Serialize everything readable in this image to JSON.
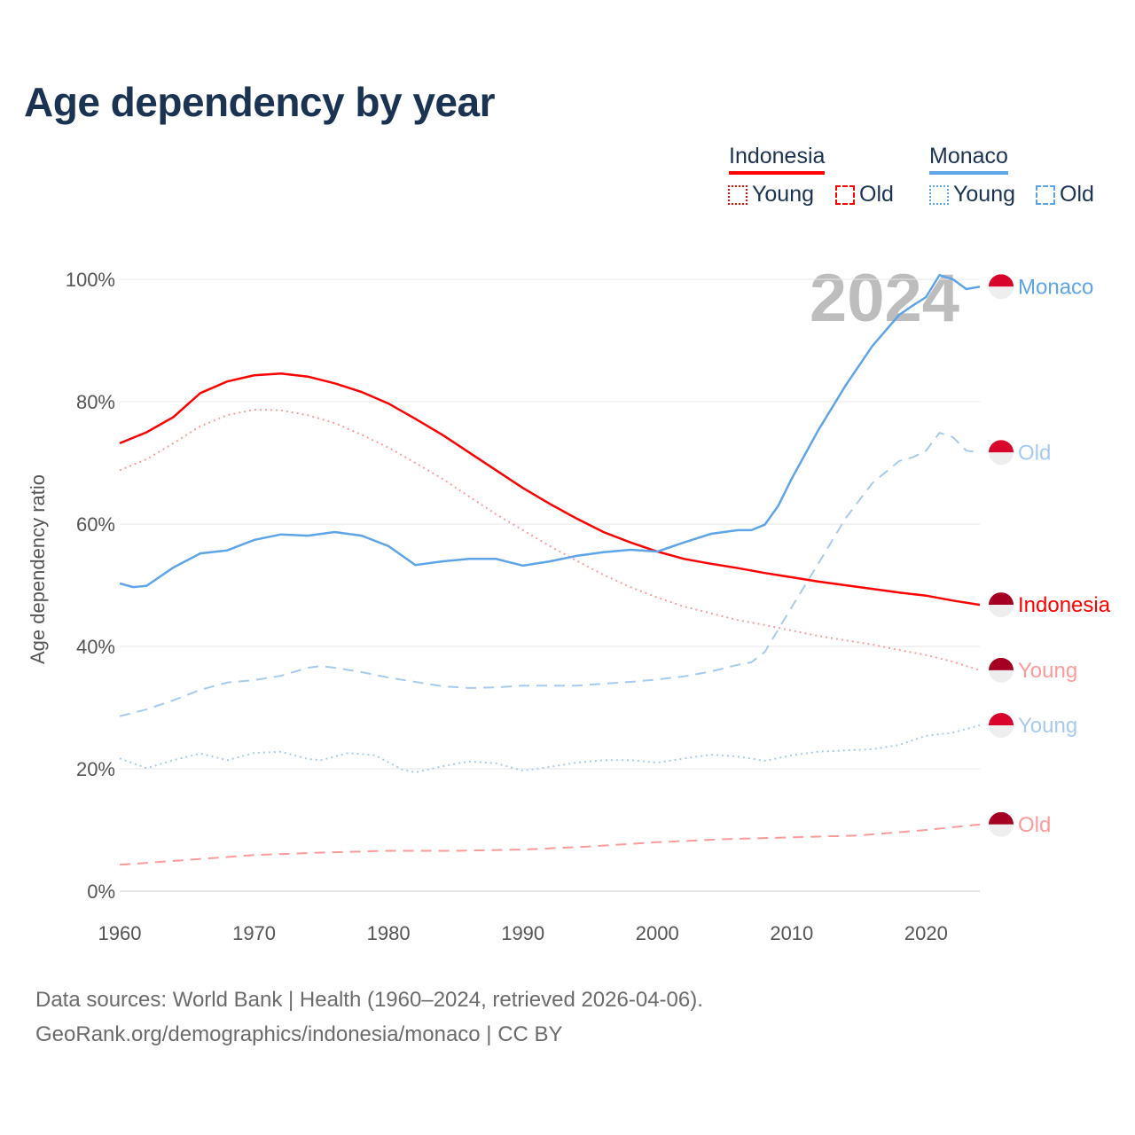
{
  "title": "Age dependency by year",
  "legend": {
    "countries": [
      {
        "name": "Indonesia",
        "color": "#ff0000"
      },
      {
        "name": "Monaco",
        "color": "#5ea4e8"
      }
    ],
    "young_label": "Young",
    "old_label": "Old"
  },
  "year_watermark": "2024",
  "source_line1": "Data sources: World Bank | Health (1960–2024, retrieved 2026-04-06).",
  "source_line2": "GeoRank.org/demographics/indonesia/monaco | CC BY",
  "chart_data": {
    "type": "line",
    "title": "Age dependency by year",
    "xlabel": "",
    "ylabel": "Age dependency ratio",
    "xlim": [
      1960,
      2024
    ],
    "ylim": [
      0,
      100
    ],
    "xticks": [
      "1960",
      "1970",
      "1980",
      "1990",
      "2000",
      "2010",
      "2020"
    ],
    "yticks": [
      "0%",
      "20%",
      "40%",
      "60%",
      "80%",
      "100%"
    ],
    "grid": true,
    "series": [
      {
        "name": "Indonesia",
        "end_label": "Indonesia",
        "country": "Indonesia",
        "kind": "total",
        "color": "#ff0000",
        "dash": "solid",
        "x": [
          1960,
          1962,
          1964,
          1966,
          1968,
          1970,
          1972,
          1974,
          1976,
          1978,
          1980,
          1982,
          1984,
          1986,
          1988,
          1990,
          1992,
          1994,
          1996,
          1998,
          2000,
          2002,
          2004,
          2006,
          2008,
          2010,
          2012,
          2014,
          2016,
          2018,
          2020,
          2022,
          2024
        ],
        "y": [
          73.2,
          75,
          77.5,
          81.4,
          83.3,
          84.3,
          84.6,
          84.1,
          83,
          81.6,
          79.7,
          77.2,
          74.6,
          71.7,
          68.8,
          65.9,
          63.3,
          60.9,
          58.7,
          57,
          55.5,
          54.3,
          53.5,
          52.8,
          52,
          51.3,
          50.6,
          50,
          49.4,
          48.8,
          48.3,
          47.5,
          46.8
        ]
      },
      {
        "name": "Indonesia Young",
        "end_label": "Young",
        "country": "Indonesia",
        "kind": "young",
        "color": "#ff9a9a",
        "dash": "dot",
        "x": [
          1960,
          1962,
          1964,
          1966,
          1968,
          1970,
          1972,
          1974,
          1976,
          1978,
          1980,
          1982,
          1984,
          1986,
          1988,
          1990,
          1992,
          1994,
          1996,
          1998,
          2000,
          2002,
          2004,
          2006,
          2008,
          2010,
          2012,
          2014,
          2016,
          2018,
          2020,
          2022,
          2024
        ],
        "y": [
          68.8,
          70.6,
          73.2,
          76,
          77.8,
          78.7,
          78.6,
          77.8,
          76.5,
          74.6,
          72.5,
          70,
          67.4,
          64.5,
          61.6,
          59,
          56.4,
          54,
          51.7,
          49.7,
          48,
          46.5,
          45.4,
          44.3,
          43.5,
          42.6,
          41.7,
          41,
          40.3,
          39.4,
          38.6,
          37.5,
          36.1
        ]
      },
      {
        "name": "Indonesia Old",
        "end_label": "Old",
        "country": "Indonesia",
        "kind": "old",
        "color": "#ff9a9a",
        "dash": "dash",
        "x": [
          1960,
          1965,
          1970,
          1975,
          1980,
          1985,
          1990,
          1995,
          2000,
          2005,
          2010,
          2015,
          2020,
          2024
        ],
        "y": [
          4.3,
          5.1,
          5.9,
          6.3,
          6.6,
          6.6,
          6.8,
          7.3,
          8,
          8.5,
          8.8,
          9.1,
          10,
          10.9
        ]
      },
      {
        "name": "Monaco",
        "end_label": "Monaco",
        "country": "Monaco",
        "kind": "total",
        "color": "#5ea4e8",
        "dash": "solid",
        "x": [
          1960,
          1961,
          1962,
          1964,
          1966,
          1968,
          1970,
          1972,
          1974,
          1976,
          1978,
          1980,
          1982,
          1984,
          1986,
          1988,
          1990,
          1992,
          1994,
          1996,
          1998,
          2000,
          2002,
          2004,
          2006,
          2007,
          2008,
          2009,
          2010,
          2012,
          2014,
          2016,
          2018,
          2019,
          2020,
          2021,
          2022,
          2023,
          2024
        ],
        "y": [
          50.3,
          49.7,
          49.9,
          52.9,
          55.2,
          55.7,
          57.4,
          58.3,
          58.1,
          58.7,
          58.1,
          56.4,
          53.3,
          53.9,
          54.3,
          54.3,
          53.2,
          53.9,
          54.8,
          55.4,
          55.8,
          55.5,
          57,
          58.4,
          59,
          59,
          59.9,
          63,
          67.4,
          75.4,
          82.6,
          89.1,
          94.2,
          95.7,
          97.1,
          100.7,
          100,
          98.4,
          98.8
        ]
      },
      {
        "name": "Monaco Old",
        "end_label": "Old",
        "country": "Monaco",
        "kind": "old",
        "color": "#a7caf0",
        "dash": "dash",
        "x": [
          1960,
          1962,
          1964,
          1966,
          1968,
          1970,
          1972,
          1974,
          1975,
          1976,
          1978,
          1980,
          1982,
          1984,
          1986,
          1988,
          1990,
          1994,
          1998,
          2000,
          2002,
          2004,
          2006,
          2007,
          2008,
          2009,
          2010,
          2012,
          2014,
          2016,
          2018,
          2019,
          2020,
          2021,
          2022,
          2023,
          2024
        ],
        "y": [
          28.6,
          29.7,
          31.2,
          32.9,
          34.1,
          34.5,
          35.2,
          36.5,
          36.8,
          36.5,
          35.8,
          34.9,
          34.2,
          33.5,
          33.2,
          33.3,
          33.6,
          33.6,
          34.2,
          34.6,
          35.1,
          35.9,
          37,
          37.4,
          39.1,
          42.8,
          46.4,
          53.6,
          60.9,
          66.7,
          70.3,
          70.9,
          72,
          74.9,
          74.2,
          72,
          71.7
        ]
      },
      {
        "name": "Monaco Young",
        "end_label": "Young",
        "country": "Monaco",
        "kind": "young",
        "color": "#a7caf0",
        "dash": "dot",
        "x": [
          1960,
          1962,
          1964,
          1966,
          1968,
          1970,
          1972,
          1974,
          1975,
          1977,
          1979,
          1981,
          1982,
          1984,
          1986,
          1988,
          1990,
          1992,
          1994,
          1996,
          1998,
          2000,
          2002,
          2004,
          2006,
          2008,
          2010,
          2012,
          2014,
          2016,
          2018,
          2020,
          2022,
          2024
        ],
        "y": [
          21.7,
          20.1,
          21.4,
          22.5,
          21.4,
          22.6,
          22.8,
          21.6,
          21.4,
          22.6,
          22.2,
          19.9,
          19.4,
          20.4,
          21.2,
          20.9,
          19.7,
          20.3,
          21,
          21.4,
          21.4,
          21,
          21.7,
          22.3,
          22,
          21.3,
          22.2,
          22.8,
          23,
          23.2,
          23.9,
          25.4,
          25.9,
          27.1
        ]
      }
    ]
  }
}
